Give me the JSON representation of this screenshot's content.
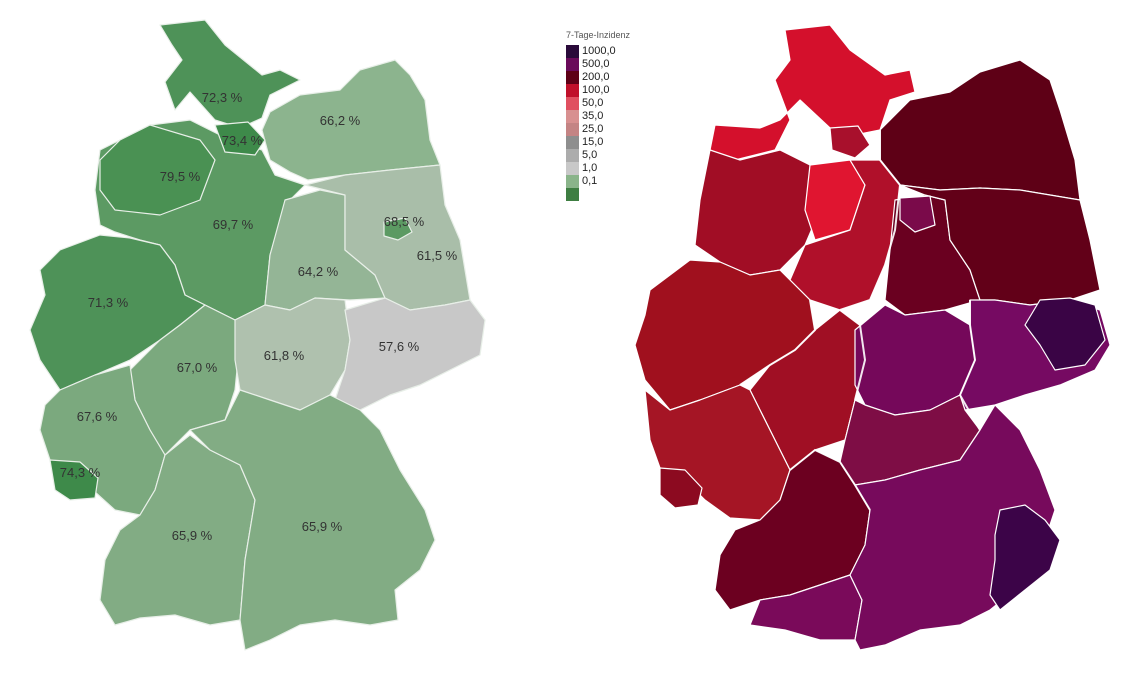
{
  "vaccination_map": {
    "states": [
      {
        "id": "schleswig-holstein",
        "label": "72,3 %",
        "value": 72.3,
        "color": "#4e9258"
      },
      {
        "id": "hamburg",
        "label": "73,4 %",
        "value": 73.4,
        "color": "#3e8a4a"
      },
      {
        "id": "mecklenburg-vorpommern",
        "label": "66,2 %",
        "value": 66.2,
        "color": "#8cb48e"
      },
      {
        "id": "bremen",
        "label": "",
        "value": null,
        "color": "#3e8a4a"
      },
      {
        "id": "niedersachsen",
        "label": "69,7 %",
        "value": 69.7,
        "color": "#5c9a63"
      },
      {
        "id": "bremen-area",
        "label": "79,5 %",
        "value": 79.5,
        "color": "#4a9153"
      },
      {
        "id": "berlin",
        "label": "68,5 %",
        "value": 68.5,
        "color": "#5c9a63"
      },
      {
        "id": "brandenburg",
        "label": "61,5 %",
        "value": 61.5,
        "color": "#a9bea9"
      },
      {
        "id": "sachsen-anhalt",
        "label": "64,2 %",
        "value": 64.2,
        "color": "#94b596"
      },
      {
        "id": "nordrhein-westfalen",
        "label": "71,3 %",
        "value": 71.3,
        "color": "#4e9258"
      },
      {
        "id": "hessen",
        "label": "67,0 %",
        "value": 67.0,
        "color": "#7ba97e"
      },
      {
        "id": "thueringen",
        "label": "61,8 %",
        "value": 61.8,
        "color": "#afc1ae"
      },
      {
        "id": "sachsen",
        "label": "57,6 %",
        "value": 57.6,
        "color": "#c8c8c8"
      },
      {
        "id": "rheinland-pfalz",
        "label": "67,6 %",
        "value": 67.6,
        "color": "#7ba97e"
      },
      {
        "id": "saarland",
        "label": "74,3 %",
        "value": 74.3,
        "color": "#3e8a4a"
      },
      {
        "id": "baden-wuerttemberg",
        "label": "65,9 %",
        "value": 65.9,
        "color": "#82ac84"
      },
      {
        "id": "bayern",
        "label": "65,9 %",
        "value": 65.9,
        "color": "#82ac84"
      }
    ]
  },
  "incidence_map": {
    "regions": [
      {
        "id": "sh",
        "color": "#d4102c"
      },
      {
        "id": "hh",
        "color": "#a8102c"
      },
      {
        "id": "mv",
        "color": "#5e0016"
      },
      {
        "id": "ni-west",
        "color": "#a10d25"
      },
      {
        "id": "ni-east",
        "color": "#b0102a"
      },
      {
        "id": "hb-area",
        "color": "#e01530"
      },
      {
        "id": "bb",
        "color": "#620018"
      },
      {
        "id": "be",
        "color": "#7a0a4a"
      },
      {
        "id": "st",
        "color": "#6a0020"
      },
      {
        "id": "nw",
        "color": "#a0101e"
      },
      {
        "id": "he",
        "color": "#a00f24"
      },
      {
        "id": "th",
        "color": "#75085a"
      },
      {
        "id": "sn",
        "color": "#760a62"
      },
      {
        "id": "sn-east",
        "color": "#3a0445"
      },
      {
        "id": "rp",
        "color": "#a51525"
      },
      {
        "id": "sl",
        "color": "#8c0a20"
      },
      {
        "id": "bw",
        "color": "#6c0020"
      },
      {
        "id": "bw-south",
        "color": "#7a0a5a"
      },
      {
        "id": "by-north",
        "color": "#7e0d45"
      },
      {
        "id": "by",
        "color": "#770a5c"
      },
      {
        "id": "by-east",
        "color": "#3c0448"
      }
    ],
    "legend": {
      "title": "7-Tage-Inzidenz",
      "items": [
        {
          "label": "1000,0",
          "color": "#2a0a3a"
        },
        {
          "label": "500,0",
          "color": "#6a0a5a"
        },
        {
          "label": "200,0",
          "color": "#5e0016"
        },
        {
          "label": "100,0",
          "color": "#c0102a"
        },
        {
          "label": "50,0",
          "color": "#e05060"
        },
        {
          "label": "35,0",
          "color": "#d89090"
        },
        {
          "label": "25,0",
          "color": "#c48484"
        },
        {
          "label": "15,0",
          "color": "#8e8e8e"
        },
        {
          "label": "5,0",
          "color": "#acacac"
        },
        {
          "label": "1,0",
          "color": "#c8c8c8"
        },
        {
          "label": "0,1",
          "color": "#8ab48a"
        },
        {
          "label": "",
          "color": "#3e7e42"
        }
      ]
    }
  }
}
